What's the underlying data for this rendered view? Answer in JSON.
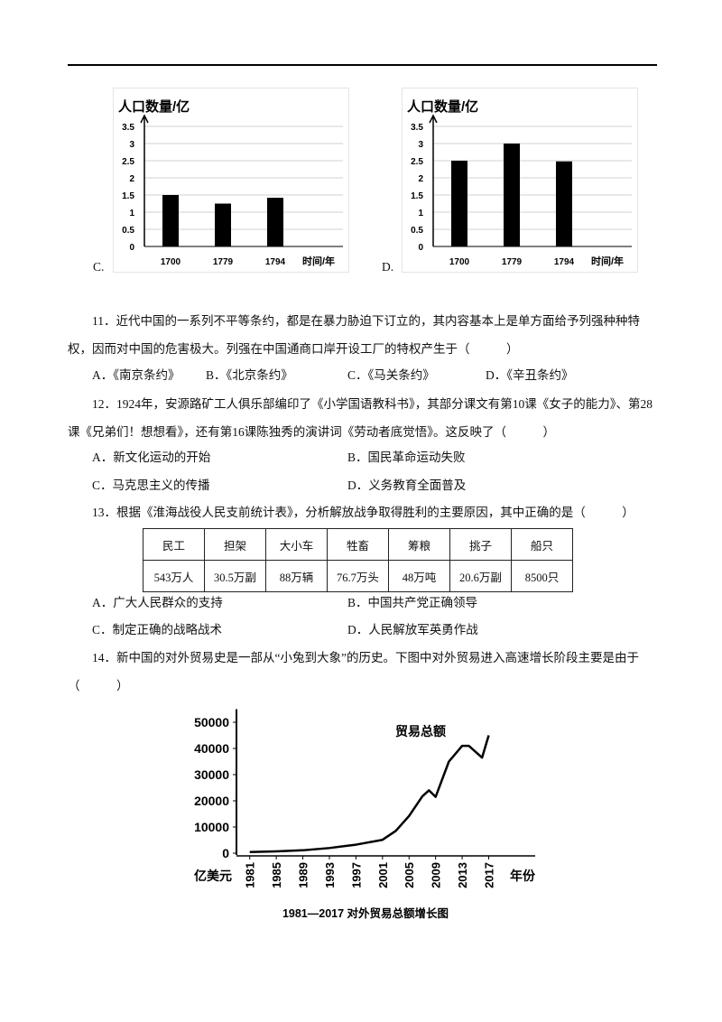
{
  "chart_option_labels": [
    "C.",
    "D."
  ],
  "questions": [
    {
      "text": "11．近代中国的一系列不平等条约，都是在暴力胁迫下订立的，其内容基本上是单方面给予列强种种特权，因而对中国的危害极大。列强在中国通商口岸开设工厂的特权产生于（　　　）",
      "options": [
        "A．《南京条约》",
        "B．《北京条约》",
        "C．《马关条约》",
        "D．《辛丑条约》"
      ]
    },
    {
      "text": "12．1924年，安源路矿工人俱乐部编印了《小学国语教科书》，其部分课文有第10课《女子的能力》、第28课《兄弟们！想想看》，还有第16课陈独秀的演讲词《劳动者底觉悟》。这反映了（　　　）",
      "options": [
        "A．新文化运动的开始",
        "B．国民革命运动失败",
        "C．马克思主义的传播",
        "D．义务教育全面普及"
      ]
    },
    {
      "text": "13．根据《淮海战役人民支前统计表》，分析解放战争取得胜利的主要原因，其中正确的是（　　　）",
      "options": [
        "A．广大人民群众的支持",
        "B．中国共产党正确领导",
        "C．制定正确的战略战术",
        "D．人民解放军英勇作战"
      ]
    },
    {
      "text": "14．新中国的对外贸易史是一部从“小兔到大象”的历史。下图中对外贸易进入高速增长阶段主要是由于（　　　）",
      "options": []
    }
  ],
  "table": {
    "header": [
      "民工",
      "担架",
      "大小车",
      "牲畜",
      "筹粮",
      "挑子",
      "船只"
    ],
    "rows": [
      [
        "543万人",
        "30.5万副",
        "88万辆",
        "76.7万头",
        "48万吨",
        "20.6万副",
        "8500只"
      ]
    ]
  },
  "chart_data": [
    {
      "type": "bar",
      "title": "人口数量/亿",
      "x_label": "时间/年",
      "categories": [
        "1700",
        "1779",
        "1794"
      ],
      "values": [
        1.5,
        1.25,
        1.42
      ],
      "color": "#000000",
      "ylim": [
        0,
        3.5
      ],
      "yticks": [
        0,
        0.5,
        1,
        1.5,
        2,
        2.5,
        3,
        3.5
      ],
      "grid": true
    },
    {
      "type": "bar",
      "title": "人口数量/亿",
      "x_label": "时间/年",
      "categories": [
        "1700",
        "1779",
        "1794"
      ],
      "values": [
        2.5,
        3.0,
        2.48
      ],
      "color": "#000000",
      "ylim": [
        0,
        3.5
      ],
      "yticks": [
        0,
        0.5,
        1,
        1.5,
        2,
        2.5,
        3,
        3.5
      ],
      "grid": true
    },
    {
      "type": "line",
      "annotation": "贸易总额",
      "y_label": "亿美元",
      "x_label": "年份",
      "caption": "1981—2017 对外贸易总额增长图",
      "x": [
        1981,
        1985,
        1989,
        1993,
        1997,
        2001,
        2003,
        2005,
        2007,
        2008,
        2009,
        2011,
        2013,
        2014,
        2016,
        2017
      ],
      "series": [
        {
          "name": "贸易总额",
          "color": "#000000",
          "values": [
            440,
            700,
            1100,
            1960,
            3250,
            5100,
            8500,
            14200,
            21700,
            24000,
            21500,
            35000,
            41000,
            41000,
            36500,
            45000
          ]
        }
      ],
      "xlim": [
        1979,
        2024
      ],
      "xticks": [
        1981,
        1985,
        1989,
        1993,
        1997,
        2001,
        2005,
        2009,
        2013,
        2017
      ],
      "ylim": [
        0,
        55000
      ],
      "yticks": [
        0,
        10000,
        20000,
        30000,
        40000,
        50000
      ],
      "grid": false
    }
  ]
}
